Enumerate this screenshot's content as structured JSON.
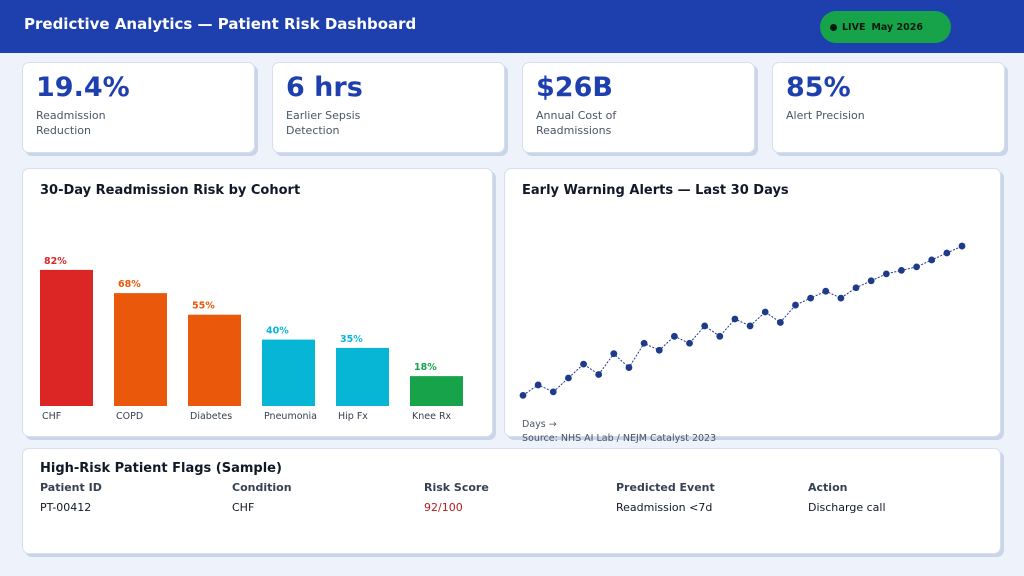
{
  "header": {
    "title": "Predictive Analytics — Patient Risk Dashboard",
    "live_label": "LIVE",
    "date": "May 2026"
  },
  "kpis": [
    {
      "value": "19.4%",
      "label": "Readmission Reduction"
    },
    {
      "value": "6 hrs",
      "label": "Earlier Sepsis Detection"
    },
    {
      "value": "$26B",
      "label": "Annual Cost of Readmissions"
    },
    {
      "value": "85%",
      "label": "Alert Precision"
    }
  ],
  "colors": {
    "header": "#1e40af",
    "live_badge": "#16a34a",
    "high": "#dc2626",
    "elevated": "#ea580c",
    "moderate": "#06b6d4",
    "low": "#16a34a",
    "line": "#1e3a8a",
    "score_text": "#b91c1c"
  },
  "chart_data": [
    {
      "type": "bar",
      "title": "30-Day Readmission Risk by Cohort",
      "categories": [
        "CHF",
        "COPD",
        "Diabetes",
        "Pneumonia",
        "Hip Fx",
        "Knee Rx"
      ],
      "values": [
        82,
        68,
        55,
        40,
        35,
        18
      ],
      "value_labels": [
        "82%",
        "68%",
        "55%",
        "40%",
        "35%",
        "18%"
      ],
      "bar_colors": [
        "#dc2626",
        "#ea580c",
        "#ea580c",
        "#06b6d4",
        "#06b6d4",
        "#16a34a"
      ],
      "label_colors": [
        "#dc2626",
        "#ea580c",
        "#ea580c",
        "#06b6d4",
        "#06b6d4",
        "#16a34a"
      ],
      "ylim": [
        0,
        100
      ]
    },
    {
      "type": "line",
      "title": "Early Warning Alerts — Last 30 Days",
      "xlabel": "Days →",
      "source": "Source: NHS AI Lab / NEJM Catalyst 2023",
      "x": [
        1,
        2,
        3,
        4,
        5,
        6,
        7,
        8,
        9,
        10,
        11,
        12,
        13,
        14,
        15,
        16,
        17,
        18,
        19,
        20,
        21,
        22,
        23,
        24,
        25,
        26,
        27,
        28,
        29,
        30
      ],
      "y": [
        12,
        15,
        13,
        17,
        21,
        18,
        24,
        20,
        27,
        25,
        29,
        27,
        32,
        29,
        34,
        32,
        36,
        33,
        38,
        40,
        42,
        40,
        43,
        45,
        47,
        48,
        49,
        51,
        53,
        55
      ],
      "ylim": [
        0,
        70
      ]
    }
  ],
  "table": {
    "title": "High-Risk Patient Flags (Sample)",
    "columns": [
      "Patient ID",
      "Condition",
      "Risk Score",
      "Predicted Event",
      "Action"
    ],
    "rows": [
      [
        "PT-00412",
        "CHF",
        "92/100",
        "Readmission <7d",
        "Discharge call"
      ]
    ]
  }
}
